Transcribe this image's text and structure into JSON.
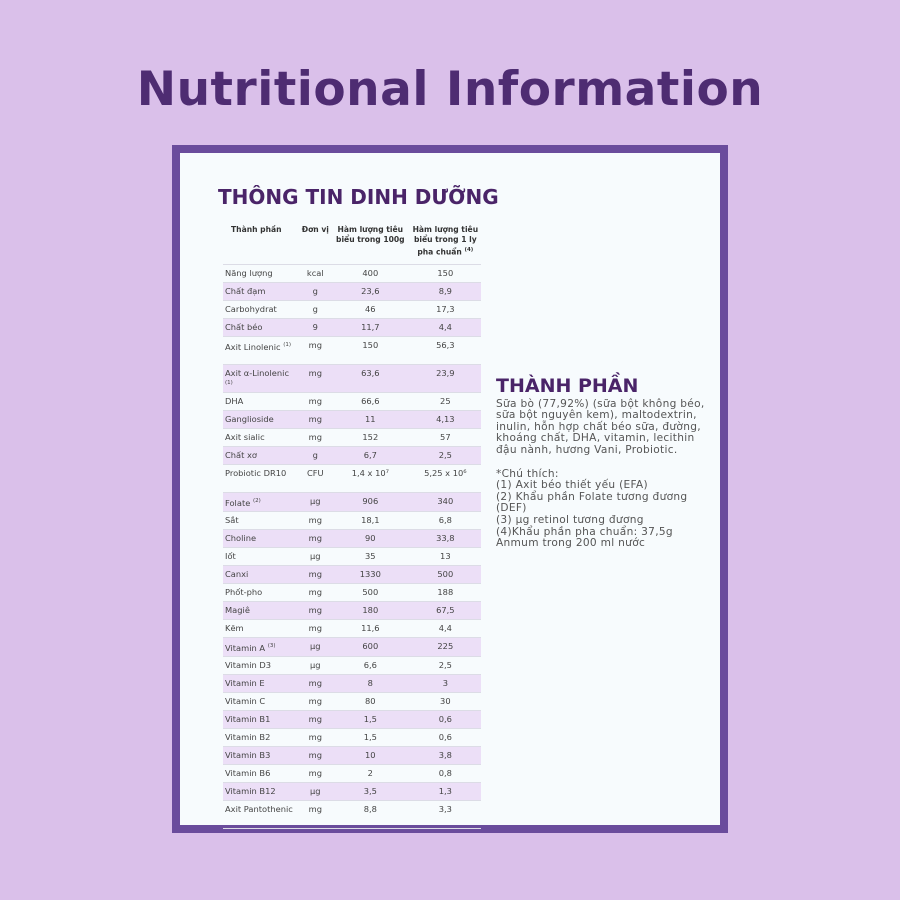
{
  "page_title": "Nutritional Information",
  "nutrition": {
    "heading": "THÔNG TIN DINH DƯỠNG",
    "columns": [
      "Thành phần",
      "Đơn vị",
      "Hàm lượng tiêu biểu trong 100g",
      "Hàm lượng tiêu biểu trong 1 ly pha chuẩn"
    ],
    "col4_sup": "(4)",
    "rows": [
      {
        "name": "Năng lượng",
        "sup": "",
        "unit": "kcal",
        "per100g": "400",
        "perServing": "150"
      },
      {
        "name": "Chất đạm",
        "sup": "",
        "unit": "g",
        "per100g": "23,6",
        "perServing": "8,9"
      },
      {
        "name": "Carbohydrat",
        "sup": "",
        "unit": "g",
        "per100g": "46",
        "perServing": "17,3"
      },
      {
        "name": "Chất béo",
        "sup": "",
        "unit": "9",
        "per100g": "11,7",
        "perServing": "4,4"
      },
      {
        "name": "Axit Linolenic",
        "sup": "(1)",
        "unit": "mg",
        "per100g": "150",
        "perServing": "56,3"
      },
      {
        "name": "Axit α-Linolenic",
        "sup": "(1)",
        "unit": "mg",
        "per100g": "63,6",
        "perServing": "23,9"
      },
      {
        "name": "DHA",
        "sup": "",
        "unit": "mg",
        "per100g": "66,6",
        "perServing": "25"
      },
      {
        "name": "Ganglioside",
        "sup": "",
        "unit": "mg",
        "per100g": "11",
        "perServing": "4,13"
      },
      {
        "name": "Axit sialic",
        "sup": "",
        "unit": "mg",
        "per100g": "152",
        "perServing": "57"
      },
      {
        "name": "Chất xơ",
        "sup": "",
        "unit": "g",
        "per100g": "6,7",
        "perServing": "2,5"
      },
      {
        "name": "Probiotic DR10",
        "sup": "",
        "unit": "CFU",
        "per100g": "1,4 x 10⁷",
        "perServing": "5,25 x 10⁶"
      },
      {
        "name": "Folate",
        "sup": "(2)",
        "unit": "µg",
        "per100g": "906",
        "perServing": "340"
      },
      {
        "name": "Sắt",
        "sup": "",
        "unit": "mg",
        "per100g": "18,1",
        "perServing": "6,8"
      },
      {
        "name": "Choline",
        "sup": "",
        "unit": "mg",
        "per100g": "90",
        "perServing": "33,8"
      },
      {
        "name": "Iốt",
        "sup": "",
        "unit": "µg",
        "per100g": "35",
        "perServing": "13"
      },
      {
        "name": "Canxi",
        "sup": "",
        "unit": "mg",
        "per100g": "1330",
        "perServing": "500"
      },
      {
        "name": "Phốt-pho",
        "sup": "",
        "unit": "mg",
        "per100g": "500",
        "perServing": "188"
      },
      {
        "name": "Magiê",
        "sup": "",
        "unit": "mg",
        "per100g": "180",
        "perServing": "67,5"
      },
      {
        "name": "Kẽm",
        "sup": "",
        "unit": "mg",
        "per100g": "11,6",
        "perServing": "4,4"
      },
      {
        "name": "Vitamin A",
        "sup": "(3)",
        "unit": "µg",
        "per100g": "600",
        "perServing": "225"
      },
      {
        "name": "Vitamin D3",
        "sup": "",
        "unit": "µg",
        "per100g": "6,6",
        "perServing": "2,5"
      },
      {
        "name": "Vitamin E",
        "sup": "",
        "unit": "mg",
        "per100g": "8",
        "perServing": "3"
      },
      {
        "name": "Vitamin C",
        "sup": "",
        "unit": "mg",
        "per100g": "80",
        "perServing": "30"
      },
      {
        "name": "Vitamin B1",
        "sup": "",
        "unit": "mg",
        "per100g": "1,5",
        "perServing": "0,6"
      },
      {
        "name": "Vitamin B2",
        "sup": "",
        "unit": "mg",
        "per100g": "1,5",
        "perServing": "0,6"
      },
      {
        "name": "Vitamin B3",
        "sup": "",
        "unit": "mg",
        "per100g": "10",
        "perServing": "3,8"
      },
      {
        "name": "Vitamin B6",
        "sup": "",
        "unit": "mg",
        "per100g": "2",
        "perServing": "0,8"
      },
      {
        "name": "Vitamin B12",
        "sup": "",
        "unit": "µg",
        "per100g": "3,5",
        "perServing": "1,3"
      },
      {
        "name": "Axit Pantothenic",
        "sup": "",
        "unit": "mg",
        "per100g": "8,8",
        "perServing": "3,3"
      }
    ]
  },
  "ingredients": {
    "heading": "THÀNH PHẦN",
    "text": "Sữa bò (77,92%) (sữa bột không béo, sữa bột nguyên kem), maltodextrin, inulin, hỗn hợp chất béo sữa, đường, khoáng chất, DHA, vitamin, lecithin đậu nành, hương Vani, Probiotic.",
    "notes_title": "*Chú thích:",
    "notes": [
      "(1) Axit béo thiết yếu (EFA)",
      "(2) Khẩu phần Folate tương đương (DEF)",
      "(3) µg retinol tương đương",
      "(4)Khẩu phần pha chuẩn: 37,5g Anmum trong 200 ml nước"
    ]
  },
  "colors": {
    "background": "#dac0ea",
    "title": "#4e2c72",
    "frame": "#6a4c9c",
    "row_alt": "#ecdff7"
  }
}
